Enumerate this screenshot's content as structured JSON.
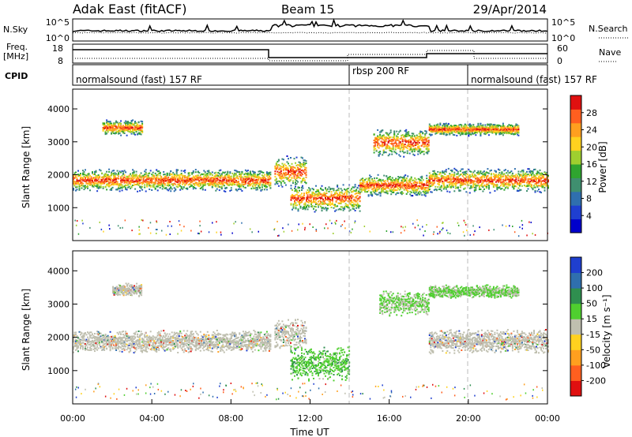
{
  "header": {
    "station": "Adak East (fitACF)",
    "beam": "Beam 15",
    "date": "29/Apr/2014"
  },
  "top_panels": {
    "nsky_label": "N.Sky",
    "nsearch_label": "N.Search",
    "nsky_ticks": [
      "10^5",
      "10^0"
    ],
    "nsky_right_ticks": [
      "10^5",
      "10^0"
    ],
    "freq_label": "Freq.",
    "freq_unit": "[MHz]",
    "freq_ticks": [
      "18",
      "8"
    ],
    "nave_label": "Nave",
    "nave_ticks": [
      "60",
      "0"
    ],
    "cpid_label": "CPID",
    "cpid_segments": [
      {
        "label": "normalsound (fast) 157 RF",
        "start_hour": 0,
        "end_hour": 14
      },
      {
        "label": "rbsp 200 RF",
        "start_hour": 14,
        "end_hour": 20
      },
      {
        "label": "normalsound (fast) 157 RF",
        "start_hour": 20,
        "end_hour": 24
      }
    ]
  },
  "chart_data": [
    {
      "type": "heatmap",
      "quantity": "power",
      "ylabel": "Slant Range [km]",
      "ylim": [
        0,
        4600
      ],
      "yticks": [
        1000,
        2000,
        3000,
        4000
      ],
      "xlim": [
        0,
        24
      ],
      "colorbar_label": "Power [dB]",
      "colorbar_ticks": [
        "4",
        "8",
        "12",
        "16",
        "20",
        "24",
        "28"
      ],
      "colorbar_colors": [
        "#0000cc",
        "#1f3fd0",
        "#2f6fae",
        "#3f8f6f",
        "#2fa52f",
        "#9fcf2f",
        "#ffd21f",
        "#ff9f1f",
        "#ff5f1f",
        "#e01010"
      ],
      "bands": [
        {
          "x_start": 0,
          "x_end": 10,
          "y_center": 1850,
          "y_width": 350
        },
        {
          "x_start": 1.5,
          "x_end": 3.5,
          "y_center": 3450,
          "y_width": 250
        },
        {
          "x_start": 10.2,
          "x_end": 11.8,
          "y_center": 2100,
          "y_width": 500
        },
        {
          "x_start": 11,
          "x_end": 14.5,
          "y_center": 1300,
          "y_width": 450
        },
        {
          "x_start": 15.2,
          "x_end": 18,
          "y_center": 3000,
          "y_width": 450
        },
        {
          "x_start": 14.5,
          "x_end": 18,
          "y_center": 1700,
          "y_width": 350
        },
        {
          "x_start": 18,
          "x_end": 24,
          "y_center": 1850,
          "y_width": 380
        },
        {
          "x_start": 18,
          "x_end": 22.5,
          "y_center": 3400,
          "y_width": 200
        }
      ]
    },
    {
      "type": "heatmap",
      "quantity": "velocity",
      "ylabel": "Slant Range [km]",
      "ylim": [
        0,
        4600
      ],
      "yticks": [
        1000,
        2000,
        3000,
        4000
      ],
      "xlim": [
        0,
        24
      ],
      "xticks": [
        "00:00",
        "04:00",
        "08:00",
        "12:00",
        "16:00",
        "20:00",
        "00:00"
      ],
      "xlabel": "Time UT",
      "colorbar_label": "Velocity [m s⁻¹]",
      "colorbar_ticks": [
        "200",
        "100",
        "50",
        "15",
        "-15",
        "-50",
        "-100",
        "-200"
      ],
      "colorbar_colors": [
        "#1f3fcf",
        "#2f6fae",
        "#2f8f4f",
        "#4fcf2f",
        "#bfbfaf",
        "#ffd21f",
        "#ff9f1f",
        "#ff5f1f",
        "#e01010"
      ],
      "bands": [
        {
          "x_start": 0,
          "x_end": 10,
          "y_center": 1900,
          "y_width": 350
        },
        {
          "x_start": 2,
          "x_end": 3.5,
          "y_center": 3450,
          "y_width": 200
        },
        {
          "x_start": 10.2,
          "x_end": 11.8,
          "y_center": 2100,
          "y_width": 500
        },
        {
          "x_start": 11,
          "x_end": 14,
          "y_center": 1250,
          "y_width": 550
        },
        {
          "x_start": 15.5,
          "x_end": 18,
          "y_center": 3050,
          "y_width": 400
        },
        {
          "x_start": 18,
          "x_end": 24,
          "y_center": 1900,
          "y_width": 380
        },
        {
          "x_start": 18,
          "x_end": 22.5,
          "y_center": 3400,
          "y_width": 200
        }
      ]
    }
  ],
  "colors": {
    "axis": "#000000",
    "dashed_marker": "#bbbbbb"
  }
}
